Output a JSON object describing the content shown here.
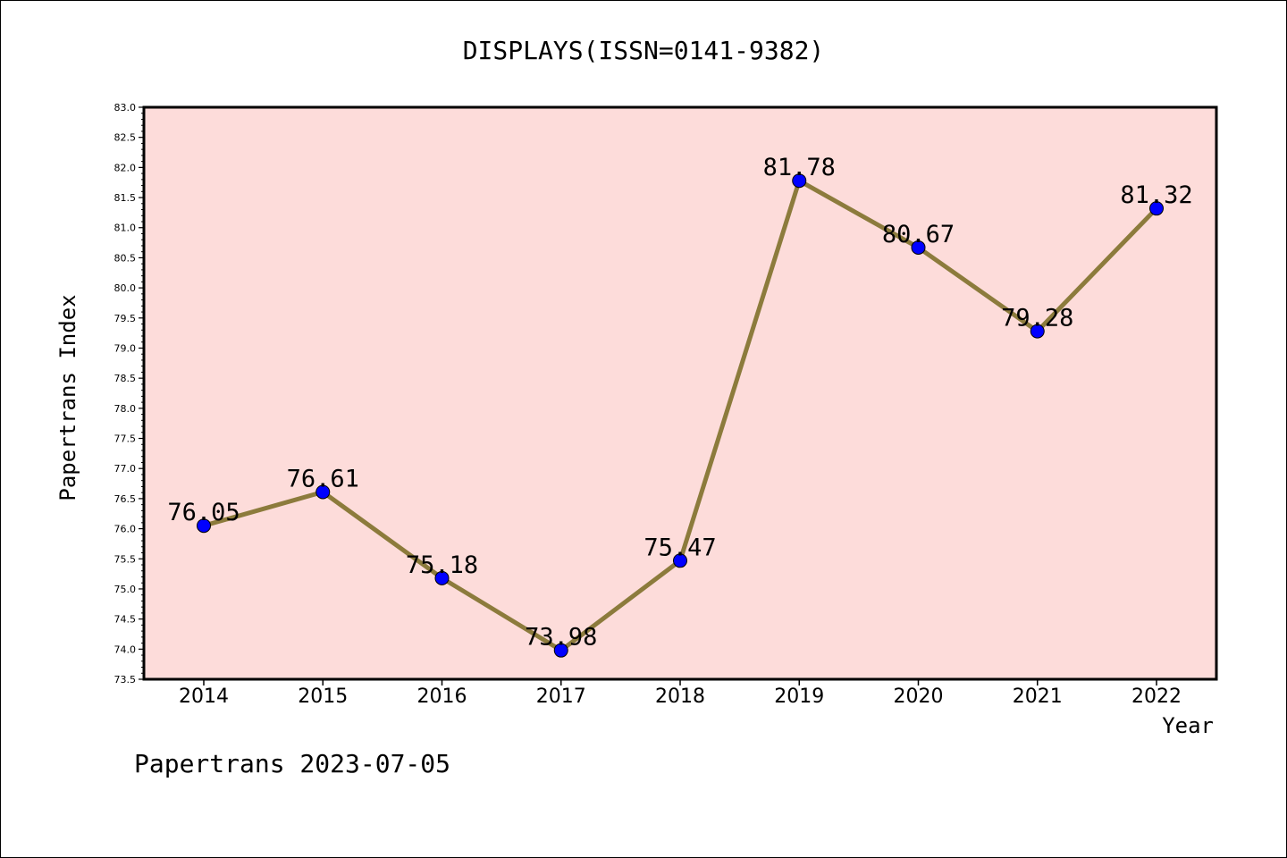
{
  "chart_data": {
    "type": "line",
    "title": "DISPLAYS(ISSN=0141-9382)",
    "xlabel": "Year",
    "ylabel": "Papertrans Index",
    "categories": [
      "2014",
      "2015",
      "2016",
      "2017",
      "2018",
      "2019",
      "2020",
      "2021",
      "2022"
    ],
    "values": [
      76.05,
      76.61,
      75.18,
      73.98,
      75.47,
      81.78,
      80.67,
      79.28,
      81.32
    ],
    "data_labels": [
      "76.05",
      "76.61",
      "75.18",
      "73.98",
      "75.47",
      "81.78",
      "80.67",
      "79.28",
      "81.32"
    ],
    "ylim": [
      73.5,
      83.0
    ],
    "yticks": [
      "73.5",
      "74.0",
      "74.5",
      "75.0",
      "75.5",
      "76.0",
      "76.5",
      "77.0",
      "77.5",
      "78.0",
      "78.5",
      "79.0",
      "79.5",
      "80.0",
      "80.5",
      "81.0",
      "81.5",
      "82.0",
      "82.5",
      "83.0"
    ],
    "grid": false,
    "legend": "none",
    "colors": {
      "plot_background": "#fddcda",
      "line": "#8c7b3c",
      "marker": "#0000ff"
    }
  },
  "footer": {
    "watermark": "Papertrans 2023-07-05"
  }
}
